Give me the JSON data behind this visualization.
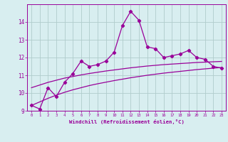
{
  "xlabel": "Windchill (Refroidissement éolien,°C)",
  "x_values": [
    0,
    1,
    2,
    3,
    4,
    5,
    6,
    7,
    8,
    9,
    10,
    11,
    12,
    13,
    14,
    15,
    16,
    17,
    18,
    19,
    20,
    21,
    22,
    23
  ],
  "line1_y": [
    9.3,
    9.1,
    10.3,
    9.8,
    10.6,
    11.1,
    11.8,
    11.5,
    11.6,
    11.8,
    12.3,
    13.8,
    14.6,
    14.1,
    12.6,
    12.5,
    12.0,
    12.1,
    12.2,
    12.4,
    12.0,
    11.9,
    11.5,
    11.4
  ],
  "line2_y": [
    10.3,
    10.45,
    10.6,
    10.72,
    10.84,
    10.93,
    11.02,
    11.1,
    11.17,
    11.24,
    11.3,
    11.36,
    11.42,
    11.47,
    11.52,
    11.56,
    11.6,
    11.63,
    11.66,
    11.69,
    11.72,
    11.74,
    11.76,
    11.78
  ],
  "line3_y": [
    9.3,
    9.5,
    9.7,
    9.88,
    10.04,
    10.18,
    10.3,
    10.42,
    10.52,
    10.61,
    10.7,
    10.78,
    10.86,
    10.93,
    11.0,
    11.06,
    11.12,
    11.17,
    11.22,
    11.27,
    11.32,
    11.36,
    11.4,
    11.44
  ],
  "line_color": "#990099",
  "bg_color": "#d8eef0",
  "grid_color": "#b0cccc",
  "ylim": [
    9.0,
    15.0
  ],
  "xlim": [
    -0.5,
    23.5
  ],
  "yticks": [
    9,
    10,
    11,
    12,
    13,
    14
  ],
  "xticks": [
    0,
    1,
    2,
    3,
    4,
    5,
    6,
    7,
    8,
    9,
    10,
    11,
    12,
    13,
    14,
    15,
    16,
    17,
    18,
    19,
    20,
    21,
    22,
    23
  ]
}
